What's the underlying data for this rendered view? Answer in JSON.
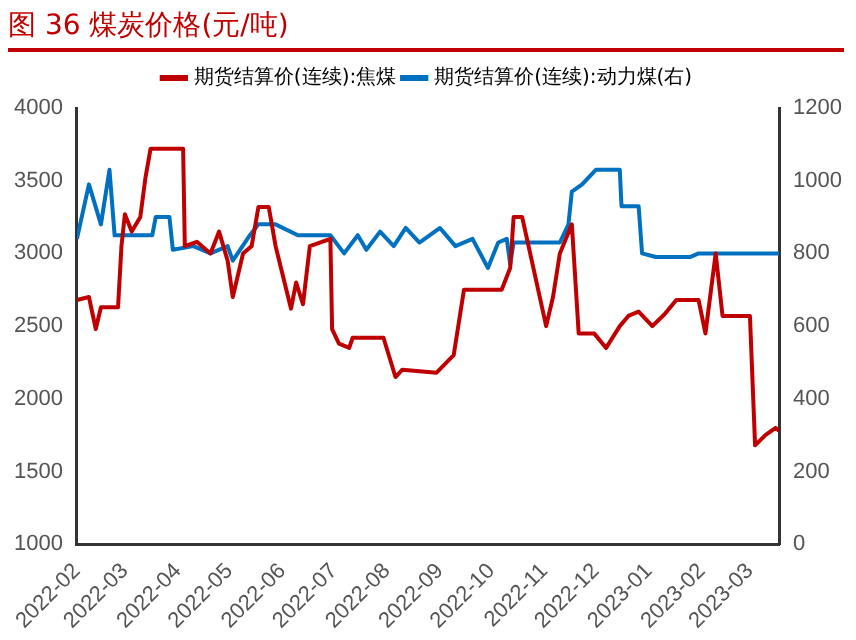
{
  "chart_data": {
    "type": "line",
    "title": "图 36 煤炭价格(元/吨)",
    "legend": "top",
    "grid": false,
    "marker": "none",
    "line_style": "solid",
    "xlim": [
      "2022-02-01",
      "2023-03-18"
    ],
    "xticks": [
      "2022-02",
      "2022-03",
      "2022-04",
      "2022-05",
      "2022-06",
      "2022-07",
      "2022-08",
      "2022-09",
      "2022-10",
      "2022-11",
      "2022-12",
      "2023-01",
      "2023-02",
      "2023-03"
    ],
    "ylim": [
      1000,
      4000
    ],
    "yticks": [
      1000,
      1500,
      2000,
      2500,
      3000,
      3500,
      4000
    ],
    "y2lim": [
      0,
      1200
    ],
    "y2ticks": [
      0,
      200,
      400,
      600,
      800,
      1000,
      1200
    ],
    "series": [
      {
        "name": "期货结算价(连续):焦煤",
        "color": "#c00000",
        "x": [
          "2022-02-01",
          "2022-02-08",
          "2022-02-12",
          "2022-02-15",
          "2022-02-25",
          "2022-02-27",
          "2022-03-01",
          "2022-03-05",
          "2022-03-10",
          "2022-03-13",
          "2022-03-16",
          "2022-04-04",
          "2022-04-05",
          "2022-04-12",
          "2022-04-20",
          "2022-04-25",
          "2022-04-30",
          "2022-05-03",
          "2022-05-06",
          "2022-05-09",
          "2022-05-14",
          "2022-05-18",
          "2022-05-24",
          "2022-05-28",
          "2022-06-06",
          "2022-06-09",
          "2022-06-13",
          "2022-06-17",
          "2022-06-29",
          "2022-06-30",
          "2022-07-04",
          "2022-07-10",
          "2022-07-12",
          "2022-07-30",
          "2022-08-06",
          "2022-08-10",
          "2022-08-30",
          "2022-09-09",
          "2022-09-15",
          "2022-10-07",
          "2022-10-12",
          "2022-10-14",
          "2022-10-19",
          "2022-11-02",
          "2022-11-06",
          "2022-11-10",
          "2022-11-17",
          "2022-11-21",
          "2022-11-30",
          "2022-12-07",
          "2022-12-15",
          "2022-12-20",
          "2022-12-26",
          "2023-01-03",
          "2023-01-10",
          "2023-01-17",
          "2023-01-30",
          "2023-02-03",
          "2023-02-09",
          "2023-02-13",
          "2023-03-01",
          "2023-03-04",
          "2023-03-10",
          "2023-03-16",
          "2023-03-18"
        ],
        "values": [
          2680,
          2700,
          2480,
          2630,
          2630,
          3050,
          3270,
          3150,
          3250,
          3520,
          3720,
          3720,
          3050,
          3080,
          3000,
          3150,
          2950,
          2700,
          2850,
          3000,
          3050,
          3320,
          3320,
          3050,
          2620,
          2800,
          2650,
          3050,
          3100,
          2480,
          2380,
          2350,
          2420,
          2420,
          2150,
          2200,
          2180,
          2300,
          2750,
          2750,
          2900,
          3250,
          3250,
          2500,
          2700,
          3000,
          3200,
          2450,
          2450,
          2350,
          2500,
          2570,
          2600,
          2500,
          2580,
          2680,
          2680,
          2450,
          3000,
          2570,
          2570,
          1680,
          1750,
          1800,
          1780
        ]
      },
      {
        "name": "期货结算价(连续):动力煤(右)",
        "color": "#0070c0",
        "axis": "y2",
        "x": [
          "2022-02-01",
          "2022-02-08",
          "2022-02-15",
          "2022-02-20",
          "2022-02-23",
          "2022-03-17",
          "2022-03-19",
          "2022-03-27",
          "2022-03-29",
          "2022-04-10",
          "2022-04-20",
          "2022-04-30",
          "2022-05-03",
          "2022-05-13",
          "2022-05-18",
          "2022-05-28",
          "2022-06-10",
          "2022-06-29",
          "2022-07-07",
          "2022-07-15",
          "2022-07-20",
          "2022-07-28",
          "2022-08-05",
          "2022-08-12",
          "2022-08-20",
          "2022-09-01",
          "2022-09-10",
          "2022-09-20",
          "2022-09-29",
          "2022-10-05",
          "2022-10-10",
          "2022-10-12",
          "2022-10-14",
          "2022-11-10",
          "2022-11-15",
          "2022-11-17",
          "2022-11-23",
          "2022-12-01",
          "2022-12-15",
          "2022-12-16",
          "2022-12-26",
          "2022-12-28",
          "2023-01-05",
          "2023-01-25",
          "2023-01-30",
          "2023-03-18"
        ],
        "values": [
          840,
          990,
          880,
          1030,
          850,
          850,
          900,
          900,
          810,
          820,
          800,
          820,
          780,
          850,
          880,
          880,
          850,
          850,
          800,
          850,
          810,
          860,
          820,
          870,
          830,
          870,
          820,
          840,
          760,
          830,
          840,
          770,
          830,
          830,
          880,
          970,
          990,
          1030,
          1030,
          930,
          930,
          800,
          790,
          790,
          800,
          800
        ]
      }
    ]
  }
}
